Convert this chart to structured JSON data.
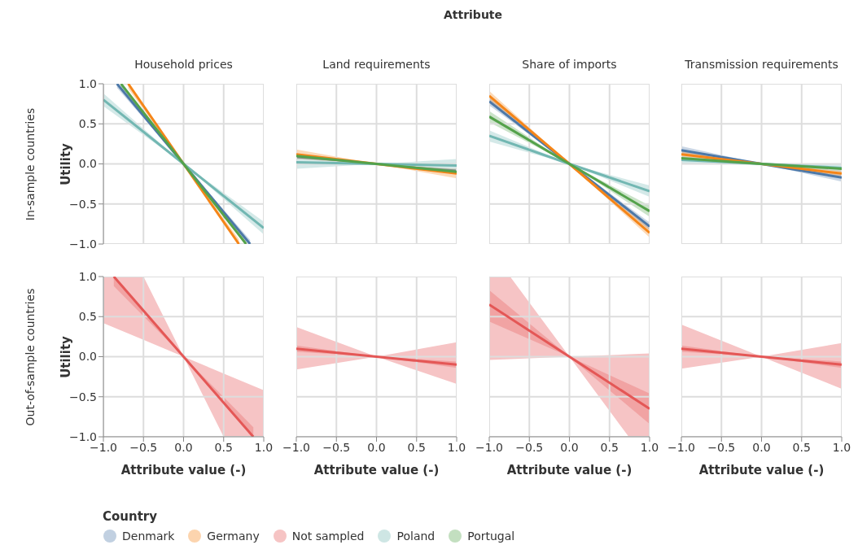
{
  "chart_data": [
    {
      "type": "line",
      "title": "Household prices",
      "ylabel": "Utility",
      "annotations": [
        "Attribute",
        "In-sample countries"
      ],
      "tick_labels": "y",
      "grid": true,
      "legend": "bottom",
      "legend_title": "Country",
      "xlim": [
        -1,
        1
      ],
      "ylim": [
        -1,
        1
      ],
      "xticks": [
        -1,
        -0.5,
        0,
        0.5,
        1
      ],
      "yticks": [
        {
          "value": -1,
          "label": "−1.0"
        },
        {
          "value": -0.5,
          "label": "−0.5"
        },
        {
          "value": 0,
          "label": "0.0"
        },
        {
          "value": 0.5,
          "label": "0.5"
        },
        {
          "value": 1,
          "label": "1.0"
        }
      ],
      "series": [
        {
          "name": "Denmark",
          "color": "#4c78a8",
          "x": [
            -0.83,
            0,
            0.83
          ],
          "values": [
            1,
            0,
            -1
          ],
          "lower": [
            0.95,
            0,
            -1
          ],
          "upper": [
            1,
            0,
            -0.95
          ]
        },
        {
          "name": "Germany",
          "color": "#f58518",
          "x": [
            -0.69,
            0,
            0.69
          ],
          "values": [
            1,
            0,
            -1
          ],
          "lower": [
            0.94,
            0,
            -1
          ],
          "upper": [
            1,
            0,
            -0.94
          ]
        },
        {
          "name": "Poland",
          "color": "#72b7b2",
          "x": [
            -1,
            0,
            1
          ],
          "values": [
            0.8,
            0,
            -0.8
          ],
          "lower": [
            0.72,
            0,
            -0.88
          ],
          "upper": [
            0.88,
            0,
            -0.72
          ]
        },
        {
          "name": "Portugal",
          "color": "#54a24b",
          "x": [
            -0.78,
            0,
            0.78
          ],
          "values": [
            1,
            0,
            -1
          ],
          "lower": [
            0.95,
            0,
            -1
          ],
          "upper": [
            1,
            0,
            -0.95
          ]
        }
      ]
    },
    {
      "type": "line",
      "title": "Land requirements",
      "tick_labels": false,
      "grid": true,
      "xlim": [
        -1,
        1
      ],
      "ylim": [
        -1,
        1
      ],
      "xticks": [
        -1,
        -0.5,
        0,
        0.5,
        1
      ],
      "yticks": [
        -1,
        -0.5,
        0,
        0.5,
        1
      ],
      "series": [
        {
          "name": "Denmark",
          "color": "#4c78a8",
          "x": [
            -1,
            0,
            1
          ],
          "values": [
            null,
            null,
            null
          ],
          "lower": [
            0.07,
            0,
            -0.13
          ],
          "upper": [
            0.13,
            0,
            -0.07
          ]
        },
        {
          "name": "Germany",
          "color": "#f58518",
          "x": [
            -1,
            0,
            1
          ],
          "values": [
            0.12,
            0,
            -0.12
          ],
          "lower": [
            0.06,
            0,
            -0.18
          ],
          "upper": [
            0.18,
            0,
            -0.06
          ]
        },
        {
          "name": "Poland",
          "color": "#72b7b2",
          "x": [
            -1,
            0,
            1
          ],
          "values": [
            0.02,
            0,
            -0.02
          ],
          "lower": [
            -0.06,
            0,
            -0.1
          ],
          "upper": [
            0.1,
            0,
            0.06
          ]
        },
        {
          "name": "Portugal",
          "color": "#54a24b",
          "x": [
            -1,
            0,
            1
          ],
          "values": [
            0.1,
            0,
            -0.1
          ]
        }
      ]
    },
    {
      "type": "line",
      "title": "Share of imports",
      "tick_labels": false,
      "grid": true,
      "xlim": [
        -1,
        1
      ],
      "ylim": [
        -1,
        1
      ],
      "xticks": [
        -1,
        -0.5,
        0,
        0.5,
        1
      ],
      "yticks": [
        -1,
        -0.5,
        0,
        0.5,
        1
      ],
      "series": [
        {
          "name": "Denmark",
          "color": "#4c78a8",
          "x": [
            -1,
            0,
            1
          ],
          "values": [
            0.78,
            0,
            -0.78
          ],
          "lower": [
            0.73,
            0,
            -0.83
          ],
          "upper": [
            0.83,
            0,
            -0.73
          ]
        },
        {
          "name": "Germany",
          "color": "#f58518",
          "x": [
            -1,
            0,
            1
          ],
          "values": [
            0.85,
            0,
            -0.86
          ],
          "lower": [
            0.79,
            0,
            -0.92
          ],
          "upper": [
            0.91,
            0,
            -0.8
          ]
        },
        {
          "name": "Poland",
          "color": "#72b7b2",
          "x": [
            -1,
            0,
            1
          ],
          "values": [
            0.35,
            0,
            -0.34
          ],
          "lower": [
            0.28,
            0,
            -0.41
          ],
          "upper": [
            0.42,
            0,
            -0.27
          ]
        },
        {
          "name": "Portugal",
          "color": "#54a24b",
          "x": [
            -1,
            0,
            1
          ],
          "values": [
            0.59,
            0,
            -0.59
          ],
          "lower": [
            0.52,
            0,
            -0.66
          ],
          "upper": [
            0.66,
            0,
            -0.52
          ]
        }
      ]
    },
    {
      "type": "line",
      "title": "Transmission requirements",
      "tick_labels": false,
      "grid": true,
      "xlim": [
        -1,
        1
      ],
      "ylim": [
        -1,
        1
      ],
      "xticks": [
        -1,
        -0.5,
        0,
        0.5,
        1
      ],
      "yticks": [
        -1,
        -0.5,
        0,
        0.5,
        1
      ],
      "series": [
        {
          "name": "Denmark",
          "color": "#4c78a8",
          "x": [
            -1,
            0,
            1
          ],
          "values": [
            0.17,
            0,
            -0.17
          ],
          "lower": [
            0.12,
            0,
            -0.22
          ],
          "upper": [
            0.22,
            0,
            -0.12
          ]
        },
        {
          "name": "Germany",
          "color": "#f58518",
          "x": [
            -1,
            0,
            1
          ],
          "values": [
            0.12,
            0,
            -0.12
          ],
          "lower": [
            0.08,
            0,
            -0.16
          ],
          "upper": [
            0.16,
            0,
            -0.08
          ]
        },
        {
          "name": "Poland",
          "color": "#72b7b2",
          "x": [
            -1,
            0,
            1
          ],
          "values": [
            0.05,
            0,
            -0.05
          ],
          "lower": [
            0,
            0,
            -0.1
          ],
          "upper": [
            0.1,
            0,
            0
          ]
        },
        {
          "name": "Portugal",
          "color": "#54a24b",
          "x": [
            -1,
            0,
            1
          ],
          "values": [
            0.07,
            0,
            -0.06
          ]
        }
      ]
    },
    {
      "type": "line",
      "xlabel": "Attribute value (-)",
      "ylabel": "Utility",
      "annotations": [
        "Out-of-sample countries"
      ],
      "grid": true,
      "xlim": [
        -1,
        1
      ],
      "ylim": [
        -1,
        1
      ],
      "xticks": [
        {
          "value": -1,
          "label": "−1.0"
        },
        {
          "value": -0.5,
          "label": "−0.5"
        },
        {
          "value": 0,
          "label": "0.0"
        },
        {
          "value": 0.5,
          "label": "0.5"
        },
        {
          "value": 1,
          "label": "1.0"
        }
      ],
      "yticks": [
        {
          "value": -1,
          "label": "−1.0"
        },
        {
          "value": -0.5,
          "label": "−0.5"
        },
        {
          "value": 0,
          "label": "0.0"
        },
        {
          "value": 0.5,
          "label": "0.5"
        },
        {
          "value": 1,
          "label": "1.0"
        }
      ],
      "series": [
        {
          "color": "#f6c4c5",
          "x": [
            -1,
            -0.5,
            0,
            0.5,
            1
          ],
          "values": [
            null,
            null,
            null,
            null,
            null
          ],
          "lower": [
            0.42,
            0.21,
            0,
            -1,
            -1
          ],
          "upper": [
            1,
            1,
            0,
            -0.21,
            -0.42
          ]
        },
        {
          "name": "Not sampled",
          "color": "#e45756",
          "x": [
            -0.87,
            0,
            0.87
          ],
          "values": [
            1,
            0,
            -1
          ],
          "lower": [
            0.88,
            0,
            -1
          ],
          "upper": [
            1,
            0,
            -0.88
          ]
        }
      ]
    },
    {
      "type": "line",
      "xlabel": "Attribute value (-)",
      "tick_labels": "x",
      "grid": true,
      "xlim": [
        -1,
        1
      ],
      "ylim": [
        -1,
        1
      ],
      "xticks": [
        {
          "value": -1,
          "label": "−1.0"
        },
        {
          "value": -0.5,
          "label": "−0.5"
        },
        {
          "value": 0,
          "label": "0.0"
        },
        {
          "value": 0.5,
          "label": "0.5"
        },
        {
          "value": 1,
          "label": "1.0"
        }
      ],
      "yticks": [
        -1,
        -0.5,
        0,
        0.5,
        1
      ],
      "series": [
        {
          "color": "#f6c4c5",
          "x": [
            -1,
            0,
            1
          ],
          "values": [
            null,
            null,
            null
          ],
          "lower": [
            -0.16,
            0,
            -0.34
          ],
          "upper": [
            0.37,
            0,
            0.18
          ]
        },
        {
          "name": "Not sampled",
          "color": "#e45756",
          "x": [
            -1,
            0,
            1
          ],
          "values": [
            0.1,
            0,
            -0.1
          ],
          "lower": [
            0.06,
            0,
            -0.14
          ],
          "upper": [
            0.14,
            0,
            -0.06
          ]
        }
      ]
    },
    {
      "type": "line",
      "xlabel": "Attribute value (-)",
      "tick_labels": "x",
      "grid": true,
      "xlim": [
        -1,
        1
      ],
      "ylim": [
        -1,
        1
      ],
      "xticks": [
        {
          "value": -1,
          "label": "−1.0"
        },
        {
          "value": -0.5,
          "label": "−0.5"
        },
        {
          "value": 0,
          "label": "0.0"
        },
        {
          "value": 0.5,
          "label": "0.5"
        },
        {
          "value": 1,
          "label": "1.0"
        }
      ],
      "yticks": [
        -1,
        -0.5,
        0,
        0.5,
        1
      ],
      "series": [
        {
          "color": "#f6c4c5",
          "x": [
            -1,
            -0.74,
            0,
            0.74,
            1
          ],
          "values": [
            null,
            null,
            null,
            null,
            null
          ],
          "lower": [
            -0.04,
            -0.03,
            0,
            -1,
            -1
          ],
          "upper": [
            1,
            1,
            0,
            0.03,
            0.04
          ]
        },
        {
          "name": "Not sampled",
          "color": "#e45756",
          "x": [
            -1,
            0,
            1
          ],
          "values": [
            0.65,
            0,
            -0.65
          ],
          "lower": [
            0.44,
            0,
            -0.84
          ],
          "upper": [
            0.83,
            0,
            -0.46
          ]
        }
      ]
    },
    {
      "type": "line",
      "xlabel": "Attribute value (-)",
      "tick_labels": "x",
      "grid": true,
      "xlim": [
        -1,
        1
      ],
      "ylim": [
        -1,
        1
      ],
      "xticks": [
        {
          "value": -1,
          "label": "−1.0"
        },
        {
          "value": -0.5,
          "label": "−0.5"
        },
        {
          "value": 0,
          "label": "0.0"
        },
        {
          "value": 0.5,
          "label": "0.5"
        },
        {
          "value": 1,
          "label": "1.0"
        }
      ],
      "yticks": [
        -1,
        -0.5,
        0,
        0.5,
        1
      ],
      "series": [
        {
          "color": "#f6c4c5",
          "x": [
            -1,
            0,
            1
          ],
          "values": [
            null,
            null,
            null
          ],
          "lower": [
            -0.15,
            0,
            -0.4
          ],
          "upper": [
            0.4,
            0,
            0.17
          ]
        },
        {
          "name": "Not sampled",
          "color": "#e45756",
          "x": [
            -1,
            0,
            1
          ],
          "values": [
            0.1,
            0,
            -0.1
          ],
          "lower": [
            0.06,
            0,
            -0.14
          ],
          "upper": [
            0.14,
            0,
            -0.06
          ]
        }
      ]
    }
  ]
}
